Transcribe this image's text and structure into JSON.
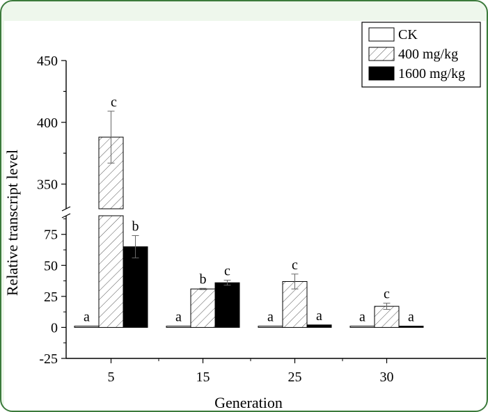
{
  "chart_data": {
    "type": "bar",
    "xlabel": "Generation",
    "ylabel": "Relative transcript level",
    "categories": [
      "5",
      "15",
      "25",
      "30"
    ],
    "axis_break": {
      "lower_range": [
        -25,
        90
      ],
      "upper_range": [
        330,
        450
      ]
    },
    "yticks_lower": [
      "-25",
      "0",
      "25",
      "50",
      "75"
    ],
    "yticks_upper": [
      "350",
      "400",
      "450"
    ],
    "legend_position": "top-right",
    "series": [
      {
        "name": "CK",
        "fill": "#ffffff",
        "pattern": "none",
        "values": [
          1,
          1,
          1,
          1
        ],
        "errors": [
          0,
          0,
          0,
          0
        ],
        "letters": [
          "a",
          "a",
          "a",
          "a"
        ]
      },
      {
        "name": "400 mg/kg",
        "fill": "#ffffff",
        "pattern": "diagonal-hatch",
        "values": [
          388,
          31,
          37,
          17
        ],
        "errors": [
          21,
          0.5,
          6,
          2.5
        ],
        "letters": [
          "c",
          "b",
          "c",
          "c"
        ]
      },
      {
        "name": "1600 mg/kg",
        "fill": "#000000",
        "pattern": "none",
        "values": [
          65,
          36,
          2,
          1
        ],
        "errors": [
          9,
          2,
          0,
          0
        ],
        "letters": [
          "b",
          "c",
          "a",
          "a"
        ]
      }
    ]
  }
}
